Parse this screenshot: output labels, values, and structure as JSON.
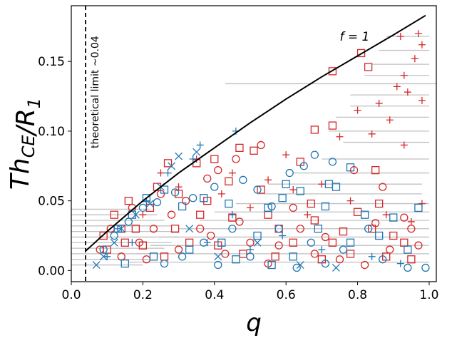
{
  "chart_data": {
    "type": "scatter",
    "title": "",
    "xlabel": "q",
    "ylabel": "Th_CE/R_1",
    "ylabel_parts": {
      "main": "Th",
      "sub": "CE",
      "mid": "/R",
      "sub2": "1"
    },
    "xlim": [
      0.0,
      1.02
    ],
    "ylim": [
      -0.008,
      0.19
    ],
    "x_ticks": [
      0.0,
      0.2,
      0.4,
      0.6,
      0.8,
      1.0
    ],
    "x_tick_labels": [
      "0.0",
      "0.2",
      "0.4",
      "0.6",
      "0.8",
      "1.0"
    ],
    "y_ticks": [
      0.0,
      0.05,
      0.1,
      0.15
    ],
    "y_tick_labels": [
      "0.00",
      "0.05",
      "0.10",
      "0.15"
    ],
    "grid": false,
    "legend": "none",
    "colors": {
      "blue": "#1f77b4",
      "red": "#d62728",
      "errorbar": "#c0c0c0",
      "curve": "#000000"
    },
    "theoretical_limit": {
      "x": 0.04,
      "label": "theoretical limit ~0.04"
    },
    "curve": {
      "label": "f = 1",
      "label_x": 0.75,
      "label_y": 0.169,
      "x": [
        0.04,
        0.1,
        0.2,
        0.3,
        0.4,
        0.5,
        0.6,
        0.7,
        0.8,
        0.9,
        0.99
      ],
      "y": [
        0.014,
        0.028,
        0.05,
        0.07,
        0.088,
        0.106,
        0.123,
        0.139,
        0.154,
        0.169,
        0.183
      ]
    },
    "series": [
      {
        "color": "red",
        "marker": "plus",
        "points": [
          [
            0.97,
            0.17
          ],
          [
            0.98,
            0.162
          ],
          [
            0.92,
            0.168
          ],
          [
            0.96,
            0.152
          ],
          [
            0.93,
            0.14
          ],
          [
            0.94,
            0.128
          ],
          [
            0.91,
            0.132
          ],
          [
            0.98,
            0.122
          ],
          [
            0.86,
            0.12
          ],
          [
            0.89,
            0.108
          ],
          [
            0.93,
            0.09
          ],
          [
            0.8,
            0.115
          ],
          [
            0.84,
            0.098
          ],
          [
            0.75,
            0.096
          ],
          [
            0.6,
            0.083
          ],
          [
            0.45,
            0.07
          ],
          [
            0.55,
            0.065
          ],
          [
            0.35,
            0.08
          ],
          [
            0.62,
            0.058
          ],
          [
            0.7,
            0.062
          ],
          [
            0.78,
            0.05
          ],
          [
            0.88,
            0.04
          ],
          [
            0.95,
            0.035
          ],
          [
            0.98,
            0.048
          ],
          [
            0.5,
            0.045
          ],
          [
            0.42,
            0.055
          ],
          [
            0.66,
            0.04
          ],
          [
            0.3,
            0.06
          ],
          [
            0.25,
            0.07
          ],
          [
            0.2,
            0.04
          ]
        ]
      },
      {
        "color": "red",
        "marker": "square",
        "points": [
          [
            0.81,
            0.156
          ],
          [
            0.73,
            0.143
          ],
          [
            0.83,
            0.146
          ],
          [
            0.68,
            0.101
          ],
          [
            0.73,
            0.104
          ],
          [
            0.51,
            0.086
          ],
          [
            0.47,
            0.088
          ],
          [
            0.4,
            0.08
          ],
          [
            0.35,
            0.077
          ],
          [
            0.27,
            0.077
          ],
          [
            0.64,
            0.078
          ],
          [
            0.85,
            0.072
          ],
          [
            0.67,
            0.048
          ],
          [
            0.55,
            0.04
          ],
          [
            0.76,
            0.028
          ],
          [
            0.86,
            0.048
          ],
          [
            0.8,
            0.042
          ],
          [
            0.9,
            0.025
          ],
          [
            0.62,
            0.02
          ],
          [
            0.58,
            0.03
          ],
          [
            0.45,
            0.038
          ],
          [
            0.38,
            0.05
          ],
          [
            0.3,
            0.055
          ],
          [
            0.22,
            0.045
          ],
          [
            0.18,
            0.03
          ],
          [
            0.15,
            0.02
          ],
          [
            0.12,
            0.04
          ],
          [
            0.1,
            0.015
          ],
          [
            0.26,
            0.01
          ],
          [
            0.33,
            0.02
          ],
          [
            0.41,
            0.018
          ],
          [
            0.48,
            0.012
          ],
          [
            0.7,
            0.008
          ],
          [
            0.78,
            0.012
          ],
          [
            0.88,
            0.01
          ],
          [
            0.95,
            0.008
          ],
          [
            0.68,
            0.036
          ],
          [
            0.53,
            0.058
          ],
          [
            0.44,
            0.064
          ],
          [
            0.36,
            0.04
          ],
          [
            0.24,
            0.06
          ],
          [
            0.16,
            0.05
          ],
          [
            0.14,
            0.03
          ],
          [
            0.09,
            0.025
          ],
          [
            0.2,
            0.018
          ],
          [
            0.29,
            0.03
          ],
          [
            0.57,
            0.01
          ],
          [
            0.73,
            0.02
          ],
          [
            0.84,
            0.03
          ],
          [
            0.93,
            0.02
          ]
        ]
      },
      {
        "color": "red",
        "marker": "circle",
        "points": [
          [
            0.53,
            0.09
          ],
          [
            0.46,
            0.08
          ],
          [
            0.38,
            0.066
          ],
          [
            0.41,
            0.072
          ],
          [
            0.79,
            0.072
          ],
          [
            0.85,
            0.034
          ],
          [
            0.93,
            0.038
          ],
          [
            0.97,
            0.018
          ],
          [
            0.64,
            0.03
          ],
          [
            0.58,
            0.018
          ],
          [
            0.5,
            0.02
          ],
          [
            0.43,
            0.012
          ],
          [
            0.36,
            0.03
          ],
          [
            0.32,
            0.05
          ],
          [
            0.28,
            0.04
          ],
          [
            0.23,
            0.03
          ],
          [
            0.19,
            0.02
          ],
          [
            0.14,
            0.01
          ],
          [
            0.11,
            0.03
          ],
          [
            0.08,
            0.015
          ],
          [
            0.17,
            0.045
          ],
          [
            0.25,
            0.055
          ],
          [
            0.68,
            0.012
          ],
          [
            0.75,
            0.008
          ],
          [
            0.82,
            0.004
          ],
          [
            0.89,
            0.015
          ],
          [
            0.95,
            0.03
          ],
          [
            0.62,
            0.045
          ],
          [
            0.47,
            0.035
          ],
          [
            0.39,
            0.025
          ],
          [
            0.3,
            0.015
          ],
          [
            0.21,
            0.008
          ],
          [
            0.55,
            0.005
          ],
          [
            0.71,
            0.024
          ],
          [
            0.87,
            0.06
          ]
        ]
      },
      {
        "color": "blue",
        "marker": "plus",
        "points": [
          [
            0.46,
            0.1
          ],
          [
            0.36,
            0.09
          ],
          [
            0.34,
            0.08
          ],
          [
            0.45,
            0.04
          ],
          [
            0.27,
            0.07
          ],
          [
            0.21,
            0.05
          ],
          [
            0.17,
            0.02
          ],
          [
            0.13,
            0.03
          ],
          [
            0.1,
            0.01
          ],
          [
            0.38,
            0.02
          ],
          [
            0.5,
            0.015
          ],
          [
            0.59,
            0.025
          ],
          [
            0.7,
            0.015
          ],
          [
            0.84,
            0.01
          ],
          [
            0.92,
            0.005
          ]
        ]
      },
      {
        "color": "blue",
        "marker": "x",
        "points": [
          [
            0.35,
            0.085
          ],
          [
            0.3,
            0.082
          ],
          [
            0.28,
            0.075
          ],
          [
            0.25,
            0.06
          ],
          [
            0.22,
            0.048
          ],
          [
            0.18,
            0.04
          ],
          [
            0.14,
            0.03
          ],
          [
            0.12,
            0.02
          ],
          [
            0.09,
            0.01
          ],
          [
            0.07,
            0.004
          ],
          [
            0.33,
            0.03
          ],
          [
            0.41,
            0.01
          ],
          [
            0.52,
            0.02
          ],
          [
            0.64,
            0.004
          ],
          [
            0.74,
            0.002
          ]
        ]
      },
      {
        "color": "blue",
        "marker": "square",
        "points": [
          [
            0.74,
            0.06
          ],
          [
            0.72,
            0.062
          ],
          [
            0.78,
            0.074
          ],
          [
            0.59,
            0.052
          ],
          [
            0.6,
            0.062
          ],
          [
            0.64,
            0.057
          ],
          [
            0.71,
            0.046
          ],
          [
            0.55,
            0.045
          ],
          [
            0.44,
            0.048
          ],
          [
            0.37,
            0.052
          ],
          [
            0.31,
            0.046
          ],
          [
            0.26,
            0.058
          ],
          [
            0.21,
            0.052
          ],
          [
            0.17,
            0.04
          ],
          [
            0.13,
            0.03
          ],
          [
            0.82,
            0.04
          ],
          [
            0.9,
            0.038
          ],
          [
            0.97,
            0.045
          ],
          [
            0.86,
            0.025
          ],
          [
            0.78,
            0.02
          ],
          [
            0.69,
            0.03
          ],
          [
            0.52,
            0.025
          ],
          [
            0.42,
            0.02
          ],
          [
            0.33,
            0.015
          ],
          [
            0.23,
            0.01
          ],
          [
            0.15,
            0.005
          ],
          [
            0.62,
            0.01
          ],
          [
            0.56,
            0.004
          ],
          [
            0.46,
            0.008
          ],
          [
            0.94,
            0.015
          ]
        ]
      },
      {
        "color": "blue",
        "marker": "circle",
        "points": [
          [
            0.68,
            0.083
          ],
          [
            0.73,
            0.078
          ],
          [
            0.65,
            0.075
          ],
          [
            0.61,
            0.07
          ],
          [
            0.56,
            0.046
          ],
          [
            0.52,
            0.058
          ],
          [
            0.48,
            0.065
          ],
          [
            0.4,
            0.06
          ],
          [
            0.34,
            0.052
          ],
          [
            0.29,
            0.056
          ],
          [
            0.24,
            0.049
          ],
          [
            0.2,
            0.045
          ],
          [
            0.16,
            0.035
          ],
          [
            0.12,
            0.025
          ],
          [
            0.09,
            0.015
          ],
          [
            0.58,
            0.03
          ],
          [
            0.67,
            0.02
          ],
          [
            0.76,
            0.015
          ],
          [
            0.87,
            0.008
          ],
          [
            0.94,
            0.002
          ],
          [
            0.99,
            0.002
          ],
          [
            0.83,
            0.03
          ],
          [
            0.45,
            0.03
          ],
          [
            0.37,
            0.02
          ],
          [
            0.31,
            0.01
          ],
          [
            0.26,
            0.005
          ],
          [
            0.71,
            0.005
          ],
          [
            0.63,
            0.002
          ],
          [
            0.5,
            0.01
          ],
          [
            0.41,
            0.004
          ]
        ]
      }
    ],
    "error_bars": [
      {
        "y": 0.134,
        "xmin": 0.43,
        "xmax": 1.02
      },
      {
        "y": 0.168,
        "xmin": 0.88,
        "xmax": 1.0
      },
      {
        "y": 0.158,
        "xmin": 0.86,
        "xmax": 1.0
      },
      {
        "y": 0.148,
        "xmin": 0.84,
        "xmax": 1.0
      },
      {
        "y": 0.14,
        "xmin": 0.82,
        "xmax": 1.0
      },
      {
        "y": 0.126,
        "xmin": 0.78,
        "xmax": 1.0
      },
      {
        "y": 0.118,
        "xmin": 0.78,
        "xmax": 1.0
      },
      {
        "y": 0.11,
        "xmin": 0.74,
        "xmax": 1.0
      },
      {
        "y": 0.1,
        "xmin": 0.72,
        "xmax": 1.0
      },
      {
        "y": 0.092,
        "xmin": 0.76,
        "xmax": 1.0
      },
      {
        "y": 0.08,
        "xmin": 0.7,
        "xmax": 1.0
      },
      {
        "y": 0.07,
        "xmin": 0.62,
        "xmax": 1.0
      },
      {
        "y": 0.062,
        "xmin": 0.55,
        "xmax": 0.98
      },
      {
        "y": 0.055,
        "xmin": 0.52,
        "xmax": 0.98
      },
      {
        "y": 0.048,
        "xmin": 0.46,
        "xmax": 1.0
      },
      {
        "y": 0.042,
        "xmin": 0.4,
        "xmax": 1.0
      },
      {
        "y": 0.036,
        "xmin": 0.36,
        "xmax": 1.0
      },
      {
        "y": 0.03,
        "xmin": 0.3,
        "xmax": 1.0
      },
      {
        "y": 0.024,
        "xmin": 0.25,
        "xmax": 1.0
      },
      {
        "y": 0.018,
        "xmin": 0.22,
        "xmax": 1.0
      },
      {
        "y": 0.012,
        "xmin": 0.18,
        "xmax": 1.0
      },
      {
        "y": 0.006,
        "xmin": 0.16,
        "xmax": 1.0
      },
      {
        "y": 0.044,
        "xmin": 0.0,
        "xmax": 0.22
      },
      {
        "y": 0.04,
        "xmin": 0.0,
        "xmax": 0.24
      },
      {
        "y": 0.036,
        "xmin": 0.0,
        "xmax": 0.26
      },
      {
        "y": 0.032,
        "xmin": 0.0,
        "xmax": 0.28
      },
      {
        "y": 0.028,
        "xmin": 0.0,
        "xmax": 0.3
      },
      {
        "y": 0.024,
        "xmin": 0.0,
        "xmax": 0.3
      },
      {
        "y": 0.02,
        "xmin": 0.0,
        "xmax": 0.28
      },
      {
        "y": 0.016,
        "xmin": 0.0,
        "xmax": 0.26
      },
      {
        "y": 0.012,
        "xmin": 0.0,
        "xmax": 0.24
      },
      {
        "y": 0.008,
        "xmin": 0.0,
        "xmax": 0.22
      },
      {
        "y": 0.004,
        "xmin": 0.0,
        "xmax": 0.2
      }
    ]
  }
}
